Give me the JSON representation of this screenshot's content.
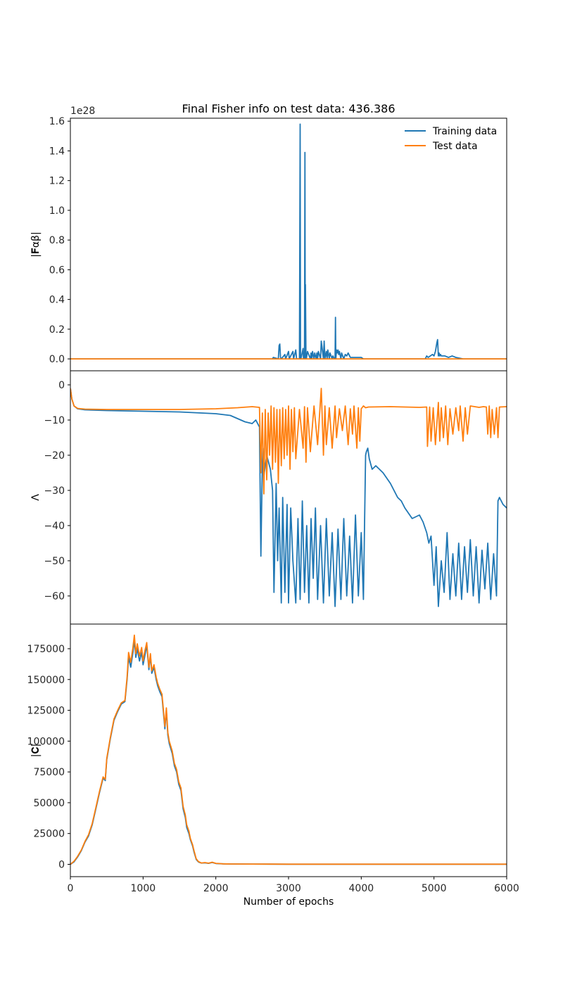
{
  "chart_data": {
    "type": "line",
    "title": "Final Fisher info on test data: 436.386",
    "xlabel": "Number of epochs",
    "xlim": [
      0,
      6000
    ],
    "xticks": [
      "0",
      "1000",
      "2000",
      "3000",
      "4000",
      "5000",
      "6000"
    ],
    "colors": {
      "training": "#1f77b4",
      "test": "#ff7f0e"
    },
    "legend": {
      "placement": "top-right",
      "entries": [
        "Training data",
        "Test data"
      ]
    },
    "panels": [
      {
        "id": "fisher",
        "ylabel": "|F_αβ|",
        "ylabel_display": "|𝐅αβ|",
        "offset_text": "1e28",
        "ylim": [
          -0.08,
          1.62
        ],
        "yticks": [
          "0.0",
          "0.2",
          "0.4",
          "0.6",
          "0.8",
          "1.0",
          "1.2",
          "1.4",
          "1.6"
        ],
        "series": [
          {
            "name": "Training data",
            "x": [
              0,
              2780,
              2790,
              2860,
              2870,
              2880,
              2890,
              2900,
              2950,
              2960,
              3000,
              3010,
              3060,
              3070,
              3100,
              3110,
              3150,
              3160,
              3165,
              3170,
              3200,
              3205,
              3220,
              3225,
              3230,
              3232,
              3240,
              3245,
              3260,
              3300,
              3310,
              3320,
              3330,
              3350,
              3360,
              3380,
              3390,
              3400,
              3410,
              3440,
              3450,
              3480,
              3490,
              3500,
              3520,
              3530,
              3540,
              3560,
              3570,
              3600,
              3610,
              3630,
              3640,
              3645,
              3650,
              3660,
              3670,
              3680,
              3690,
              3700,
              3720,
              3730,
              3760,
              3780,
              3800,
              3820,
              3850,
              3900,
              3950,
              4000,
              4030,
              4100,
              4880,
              4900,
              4920,
              4950,
              4980,
              5000,
              5020,
              5040,
              5050,
              5060,
              5070,
              5080,
              5090,
              5100,
              5150,
              5200,
              5250,
              5300,
              5400,
              6000
            ],
            "values": [
              0,
              0,
              0.01,
              0,
              0.09,
              0.1,
              0.01,
              0,
              0.03,
              0,
              0.05,
              0,
              0.05,
              0,
              0.06,
              0,
              0,
              1.58,
              0,
              0,
              0.07,
              0,
              0,
              1.39,
              0,
              0.5,
              0,
              0,
              0.05,
              0,
              0.04,
              0,
              0.05,
              0,
              0.04,
              0,
              0.04,
              0,
              0.05,
              0,
              0.12,
              0,
              0.12,
              0,
              0.05,
              0,
              0.06,
              0,
              0.04,
              0,
              0.02,
              0,
              0,
              0.28,
              0,
              0.06,
              0.04,
              0.06,
              0.03,
              0.05,
              0,
              0.04,
              0,
              0.03,
              0.02,
              0.04,
              0.01,
              0.01,
              0.01,
              0.01,
              0,
              0,
              0,
              0.02,
              0.01,
              0.02,
              0.03,
              0.02,
              0.05,
              0.11,
              0.13,
              0.02,
              0.04,
              0.02,
              0.03,
              0.02,
              0.02,
              0.01,
              0.02,
              0.01,
              0,
              0
            ]
          },
          {
            "name": "Test data",
            "x": [
              0,
              6000
            ],
            "values": [
              0,
              0
            ]
          }
        ]
      },
      {
        "id": "lambda",
        "ylabel": "Λ",
        "ylim": [
          -68,
          4
        ],
        "yticks": [
          "0",
          "−10",
          "−20",
          "−30",
          "−40",
          "−50",
          "−60"
        ],
        "series": [
          {
            "name": "Training data",
            "x": [
              0,
              20,
              50,
              100,
              200,
              500,
              1000,
              1500,
              2000,
              2200,
              2400,
              2500,
              2550,
              2600,
              2620,
              2640,
              2650,
              2660,
              2700,
              2750,
              2780,
              2800,
              2830,
              2850,
              2870,
              2900,
              2920,
              2950,
              2980,
              3000,
              3030,
              3060,
              3100,
              3130,
              3160,
              3190,
              3220,
              3250,
              3280,
              3310,
              3340,
              3370,
              3400,
              3440,
              3480,
              3520,
              3560,
              3600,
              3640,
              3680,
              3720,
              3760,
              3800,
              3840,
              3880,
              3920,
              3960,
              4000,
              4030,
              4060,
              4070,
              4090,
              4110,
              4150,
              4200,
              4250,
              4300,
              4400,
              4500,
              4550,
              4600,
              4700,
              4800,
              4850,
              4900,
              4930,
              4960,
              5000,
              5030,
              5060,
              5100,
              5140,
              5180,
              5220,
              5260,
              5300,
              5340,
              5380,
              5420,
              5460,
              5500,
              5540,
              5580,
              5620,
              5660,
              5700,
              5740,
              5780,
              5820,
              5860,
              5880,
              5900,
              5950,
              6000
            ],
            "values": [
              -1,
              -4,
              -6,
              -6.8,
              -7.1,
              -7.3,
              -7.5,
              -7.7,
              -8.2,
              -8.7,
              -10.5,
              -11,
              -10,
              -12,
              -48.7,
              -22,
              -18,
              -26,
              -20,
              -24,
              -30,
              -59,
              -28,
              -50,
              -35,
              -62,
              -32,
              -59,
              -34,
              -62,
              -35,
              -50,
              -62,
              -38,
              -61,
              -33,
              -59,
              -40,
              -62,
              -38,
              -55,
              -35,
              -61,
              -40,
              -62,
              -38,
              -60,
              -42,
              -63,
              -41,
              -61,
              -38,
              -60,
              -43,
              -62,
              -37,
              -60,
              -42,
              -61,
              -20,
              -19,
              -18,
              -21,
              -24,
              -23,
              -24,
              -25,
              -28,
              -32,
              -33,
              -35,
              -38,
              -37,
              -39,
              -42,
              -45,
              -43,
              -57,
              -46,
              -63,
              -50,
              -59,
              -42,
              -61,
              -48,
              -60,
              -45,
              -61,
              -46,
              -59,
              -44,
              -60,
              -46,
              -62,
              -47,
              -58,
              -45,
              -61,
              -48,
              -60,
              -33,
              -32,
              -34,
              -35
            ]
          },
          {
            "name": "Test data",
            "x": [
              0,
              20,
              50,
              100,
              200,
              500,
              1000,
              1500,
              2000,
              2300,
              2500,
              2600,
              2620,
              2640,
              2660,
              2680,
              2700,
              2720,
              2740,
              2760,
              2780,
              2800,
              2820,
              2840,
              2860,
              2880,
              2900,
              2920,
              2940,
              2960,
              2980,
              3000,
              3020,
              3040,
              3060,
              3080,
              3100,
              3150,
              3200,
              3220,
              3240,
              3260,
              3300,
              3350,
              3400,
              3450,
              3480,
              3500,
              3520,
              3560,
              3600,
              3640,
              3660,
              3700,
              3740,
              3780,
              3820,
              3850,
              3880,
              3900,
              3940,
              3960,
              3980,
              4000,
              4030,
              4060,
              4100,
              4400,
              4800,
              4900,
              4910,
              4940,
              4960,
              4990,
              5020,
              5060,
              5080,
              5100,
              5130,
              5160,
              5190,
              5220,
              5260,
              5300,
              5340,
              5360,
              5400,
              5430,
              5460,
              5500,
              5560,
              5620,
              5680,
              5720,
              5740,
              5760,
              5780,
              5800,
              5830,
              5860,
              5880,
              5900,
              6000
            ],
            "values": [
              -1,
              -4,
              -6,
              -6.7,
              -6.9,
              -7,
              -7,
              -7,
              -6.8,
              -6.5,
              -6.2,
              -6.4,
              -25,
              -8,
              -31,
              -7,
              -27,
              -8,
              -20,
              -6,
              -24,
              -6.5,
              -22,
              -7,
              -28,
              -7,
              -23,
              -6.5,
              -21,
              -7,
              -20,
              -6,
              -24,
              -7,
              -19,
              -6.5,
              -21,
              -7,
              -18,
              -6.2,
              -22,
              -6.5,
              -19,
              -6,
              -17,
              -1,
              -20,
              -6,
              -17,
              -6.5,
              -18,
              -6,
              -15,
              -6.8,
              -13,
              -6,
              -17,
              -6.8,
              -14,
              -6,
              -18,
              -6.5,
              -16,
              -6.8,
              -6,
              -6.5,
              -6.3,
              -6.2,
              -6.4,
              -6.3,
              -17.5,
              -6.3,
              -16,
              -6.5,
              -17,
              -5,
              -16,
              -6.5,
              -15,
              -6,
              -17,
              -6.8,
              -14,
              -6.5,
              -13,
              -6,
              -16,
              -6.5,
              -14,
              -6,
              -6.2,
              -6.4,
              -6.2,
              -6.3,
              -14,
              -6,
              -15,
              -7,
              -14,
              -6.5,
              -15,
              -6.3,
              -6.2
            ]
          }
        ]
      },
      {
        "id": "covariance",
        "ylabel": "|C|",
        "ylabel_display": "|𝐂|",
        "ylim": [
          -10000,
          195000
        ],
        "yticks": [
          "0",
          "25000",
          "50000",
          "75000",
          "100000",
          "125000",
          "150000",
          "175000"
        ],
        "series": [
          {
            "name": "Training data",
            "x": [
              0,
              50,
              100,
              150,
              200,
              250,
              300,
              350,
              400,
              450,
              480,
              500,
              550,
              600,
              650,
              700,
              750,
              780,
              800,
              830,
              860,
              880,
              900,
              920,
              950,
              980,
              1000,
              1020,
              1050,
              1080,
              1100,
              1120,
              1150,
              1180,
              1200,
              1230,
              1260,
              1300,
              1320,
              1340,
              1360,
              1400,
              1430,
              1460,
              1490,
              1520,
              1550,
              1580,
              1600,
              1630,
              1650,
              1680,
              1700,
              1730,
              1760,
              1780,
              1800,
              1850,
              1900,
              1950,
              2000,
              2050,
              2100,
              2200,
              2500,
              3000,
              4000,
              5000,
              6000
            ],
            "values": [
              0,
              2000,
              6000,
              11000,
              18000,
              23000,
              32000,
              45000,
              58000,
              70000,
              68000,
              85000,
              102000,
              117000,
              124000,
              130000,
              132000,
              150000,
              168000,
              160000,
              172000,
              182000,
              168000,
              175000,
              165000,
              172000,
              162000,
              168000,
              178000,
              158000,
              170000,
              155000,
              160000,
              150000,
              145000,
              140000,
              136000,
              110000,
              125000,
              105000,
              98000,
              90000,
              80000,
              75000,
              65000,
              60000,
              45000,
              38000,
              30000,
              25000,
              20000,
              15000,
              10000,
              4000,
              2000,
              1500,
              1000,
              1200,
              800,
              1500,
              700,
              500,
              400,
              300,
              200,
              100,
              100,
              100,
              100
            ]
          },
          {
            "name": "Test data",
            "x": [
              0,
              50,
              100,
              150,
              200,
              250,
              300,
              350,
              400,
              450,
              480,
              500,
              550,
              600,
              650,
              700,
              750,
              780,
              800,
              830,
              860,
              880,
              900,
              920,
              950,
              980,
              1000,
              1020,
              1050,
              1080,
              1100,
              1120,
              1150,
              1180,
              1200,
              1230,
              1260,
              1300,
              1320,
              1340,
              1360,
              1400,
              1430,
              1460,
              1490,
              1520,
              1550,
              1580,
              1600,
              1630,
              1650,
              1680,
              1700,
              1730,
              1760,
              1780,
              1800,
              1850,
              1900,
              1950,
              2000,
              2050,
              2100,
              2200,
              2500,
              3000,
              4000,
              5000,
              6000
            ],
            "values": [
              0,
              2500,
              6500,
              11500,
              18500,
              24000,
              33000,
              46000,
              59000,
              71000,
              69000,
              86000,
              103000,
              118000,
              125000,
              131000,
              133000,
              152000,
              172000,
              164000,
              176000,
              186000,
              171000,
              179000,
              169000,
              176000,
              165000,
              172000,
              180000,
              160000,
              171000,
              157000,
              162000,
              152000,
              147000,
              142000,
              138000,
              112000,
              127000,
              107000,
              100000,
              92000,
              82000,
              77000,
              67000,
              62000,
              47000,
              40000,
              32000,
              27000,
              21000,
              16000,
              11000,
              4500,
              2200,
              1700,
              1100,
              1400,
              900,
              1700,
              800,
              600,
              400,
              300,
              200,
              100,
              100,
              100,
              100
            ]
          }
        ]
      }
    ]
  }
}
